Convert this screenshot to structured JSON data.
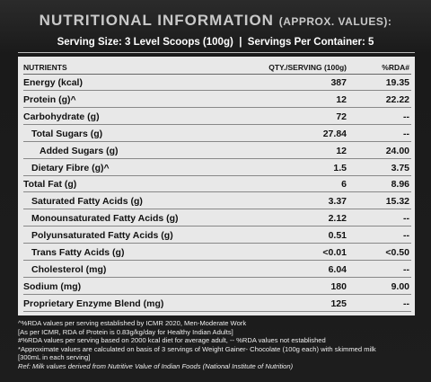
{
  "header": {
    "title": "NUTRITIONAL INFORMATION",
    "title_suffix": "(APPROX. VALUES):",
    "serving": "Serving Size: 3 Level Scoops (100g)  |  Servings Per Container: 5"
  },
  "table": {
    "columns": [
      "NUTRIENTS",
      "QTY./SERVING (100g)",
      "%RDA#"
    ],
    "rows": [
      [
        "Energy (kcal)",
        "387",
        "19.35"
      ],
      [
        "Protein (g)^",
        "12",
        "22.22"
      ],
      [
        "Carbohydrate (g)",
        "72",
        "--"
      ],
      [
        "Total Sugars (g)",
        "27.84",
        "--"
      ],
      [
        "Added Sugars (g)",
        "12",
        "24.00"
      ],
      [
        "Dietary Fibre (g)^",
        "1.5",
        "3.75"
      ],
      [
        "Total Fat (g)",
        "6",
        "8.96"
      ],
      [
        "Saturated Fatty Acids (g)",
        "3.37",
        "15.32"
      ],
      [
        "Monounsaturated Fatty Acids (g)",
        "2.12",
        "--"
      ],
      [
        "Polyunsaturated Fatty Acids (g)",
        "0.51",
        "--"
      ],
      [
        "Trans Fatty Acids (g)",
        "<0.01",
        "<0.50"
      ],
      [
        "Cholesterol (mg)",
        "6.04",
        "--"
      ],
      [
        "Sodium (mg)",
        "180",
        "9.00"
      ],
      [
        "Proprietary Enzyme Blend (mg)",
        "125",
        "--"
      ]
    ]
  },
  "footnotes": [
    "^%RDA values per serving established by ICMR 2020, Men-Moderate Work",
    "[As per ICMR, RDA of Protein is 0.83g/kg/day for Healthy Indian Adults]",
    "#%RDA values per serving based on 2000 kcal diet for average adult, -- %RDA values not established",
    "*Approximate values are calculated on basis of 3 servings of Weight Gainer- Chocolate (100g each) with skimmed milk",
    "[300mL in each serving]",
    "Ref: Milk values derived from Nutritive Value of Indian Foods (National Institute of Nutrition)"
  ]
}
